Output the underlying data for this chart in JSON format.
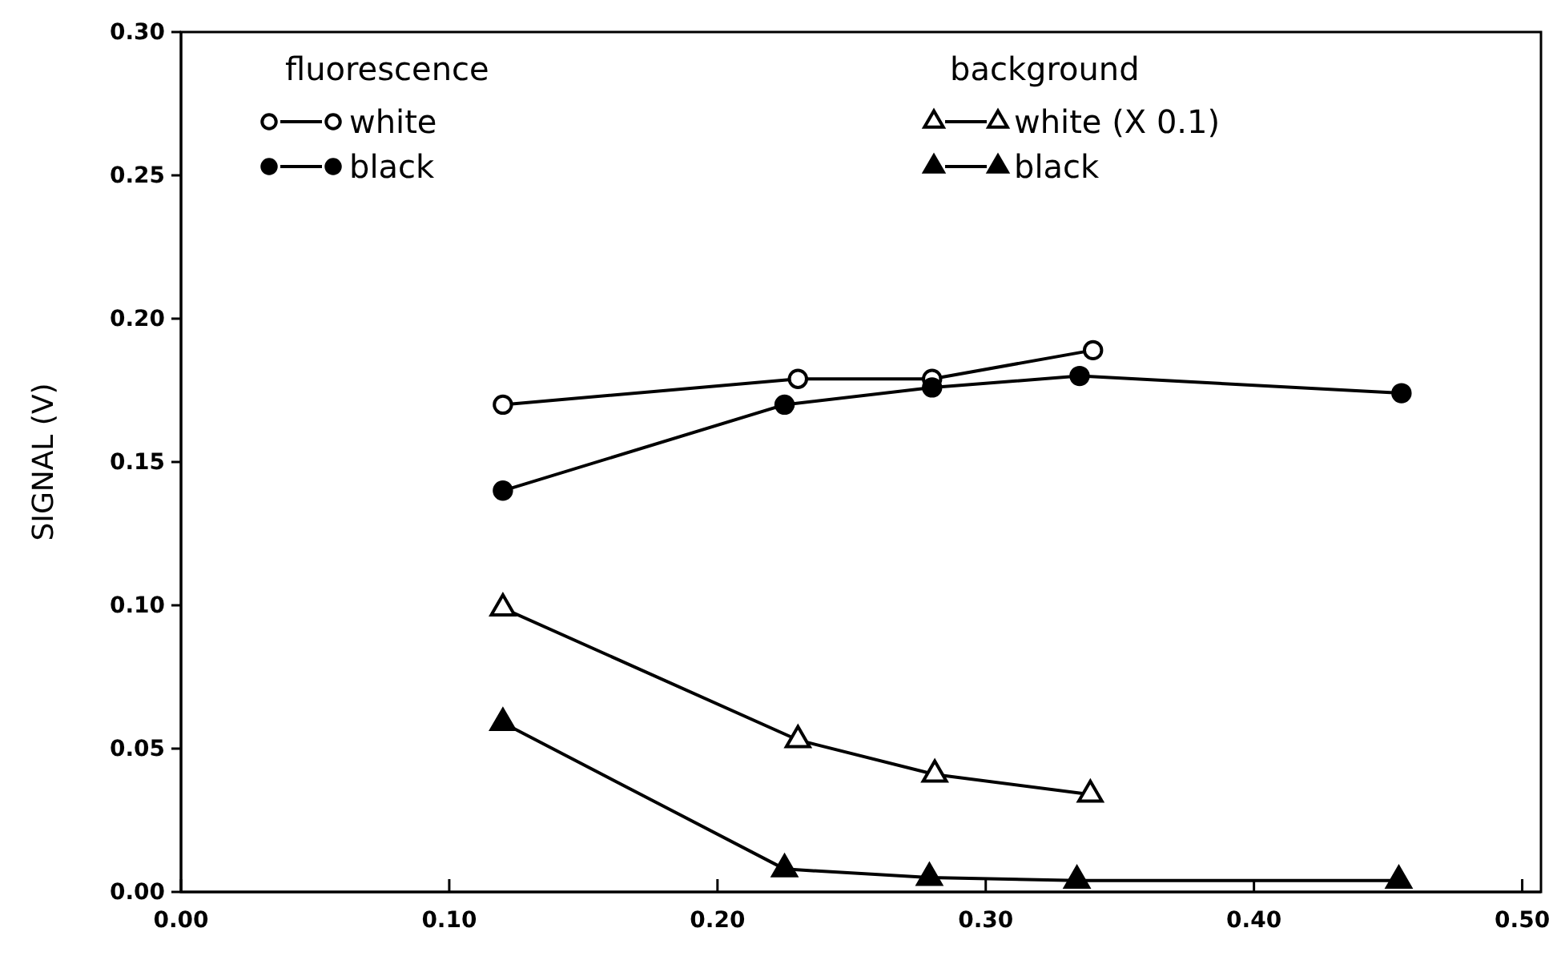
{
  "chart_data": {
    "type": "line",
    "ylabel": "SIGNAL (V)",
    "xlim": [
      0,
      0.507
    ],
    "ylim": [
      0,
      0.3
    ],
    "xticks": [
      {
        "value": 0,
        "label": "0.00"
      },
      {
        "value": 0.1,
        "label": "0.10"
      },
      {
        "value": 0.2,
        "label": "0.20"
      },
      {
        "value": 0.3,
        "label": "0.30"
      },
      {
        "value": 0.4,
        "label": "0.40"
      },
      {
        "value": 0.5,
        "label": "0.50"
      }
    ],
    "yticks": [
      {
        "value": 0,
        "label": "0.00"
      },
      {
        "value": 0.05,
        "label": "0.05"
      },
      {
        "value": 0.1,
        "label": "0.10"
      },
      {
        "value": 0.15,
        "label": "0.15"
      },
      {
        "value": 0.2,
        "label": "0.20"
      },
      {
        "value": 0.25,
        "label": "0.25"
      },
      {
        "value": 0.3,
        "label": "0.30"
      }
    ],
    "grid": false,
    "legend": "top",
    "line_style": "solid",
    "annotations": [
      "fluorescence",
      "background"
    ],
    "series": [
      {
        "name": "white",
        "color": "#000000",
        "marker": "circle-open",
        "x": [
          0.12,
          0.23,
          0.28,
          0.34
        ],
        "values": [
          0.17,
          0.179,
          0.179,
          0.189
        ]
      },
      {
        "name": "black",
        "color": "#000000",
        "marker": "circle",
        "x": [
          0.12,
          0.225,
          0.28,
          0.335,
          0.455
        ],
        "values": [
          0.14,
          0.17,
          0.176,
          0.18,
          0.174
        ]
      },
      {
        "name": "white (X 0.1)",
        "color": "#000000",
        "marker": "triangle-open",
        "x": [
          0.12,
          0.23,
          0.281,
          0.339
        ],
        "values": [
          0.099,
          0.053,
          0.041,
          0.034
        ]
      },
      {
        "name": "black",
        "color": "#000000",
        "marker": "triangle",
        "x": [
          0.12,
          0.225,
          0.279,
          0.334,
          0.454
        ],
        "values": [
          0.059,
          0.008,
          0.005,
          0.004,
          0.004
        ]
      }
    ]
  }
}
